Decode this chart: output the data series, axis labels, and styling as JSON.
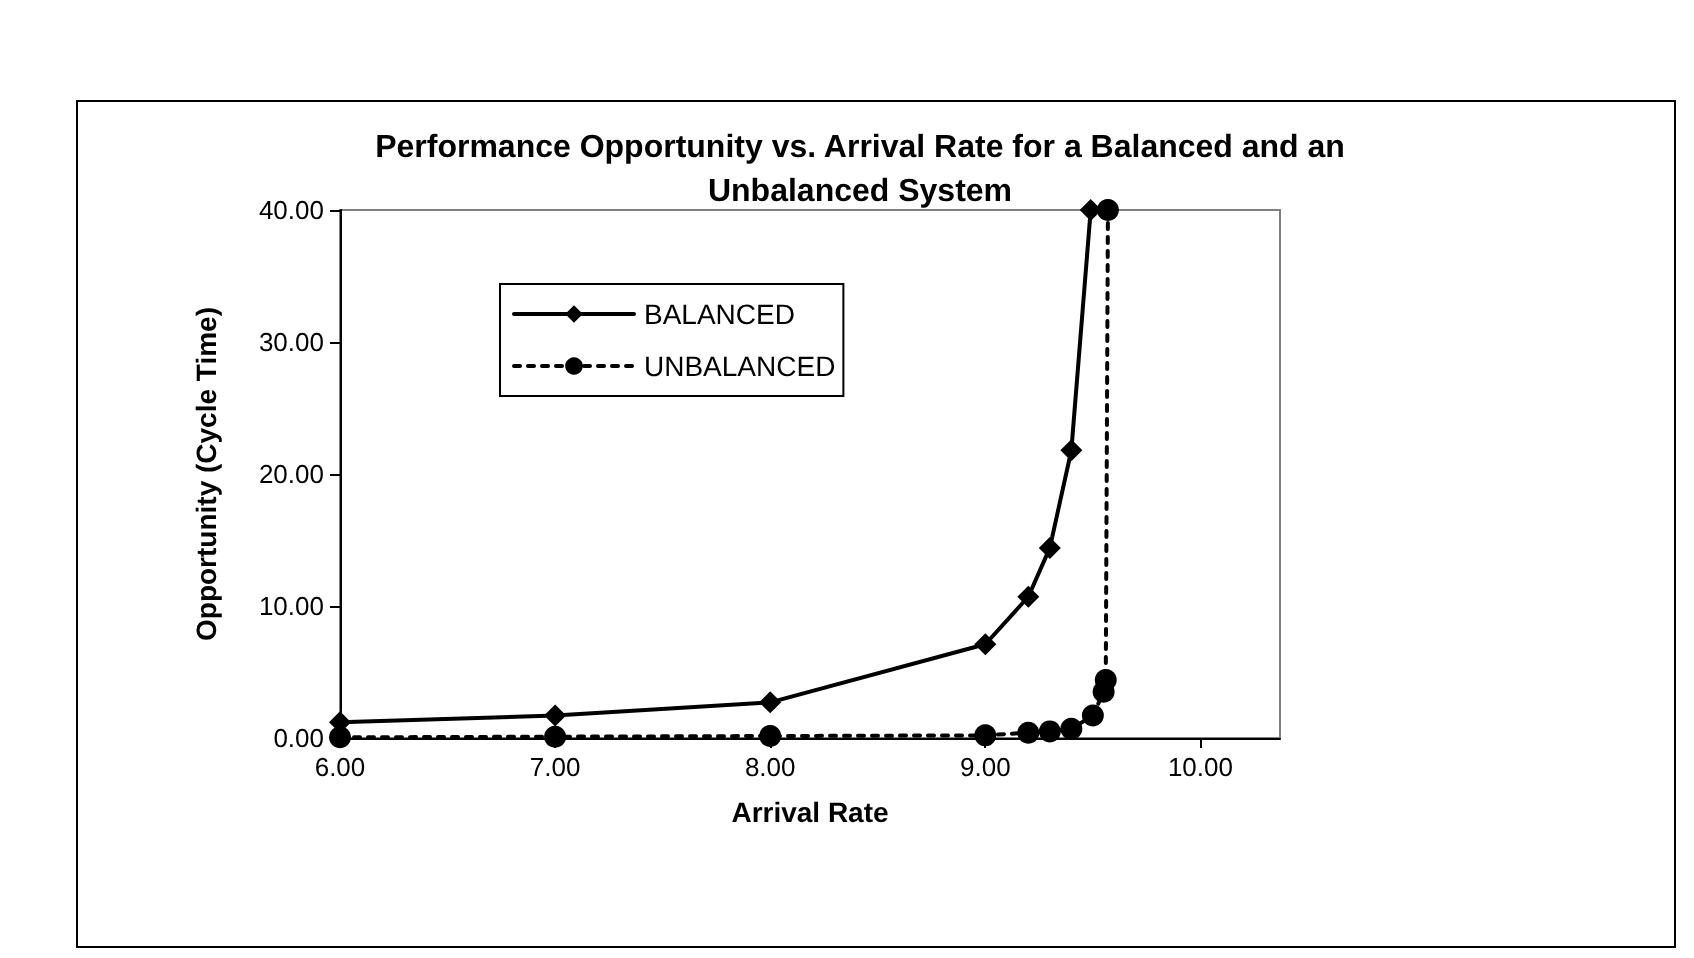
{
  "chart_data": {
    "type": "line",
    "title": "Performance Opportunity vs. Arrival Rate for a Balanced and an\nUnbalanced System",
    "xlabel": "Arrival Rate",
    "ylabel": "Opportunity (Cycle Time)",
    "xlim": [
      6,
      10.37
    ],
    "xticks": [
      {
        "value": 6,
        "label": "6.00"
      },
      {
        "value": 7,
        "label": "7.00"
      },
      {
        "value": 8,
        "label": "8.00"
      },
      {
        "value": 9,
        "label": "9.00"
      },
      {
        "value": 10,
        "label": "10.00"
      }
    ],
    "ylim": [
      0,
      40
    ],
    "yticks": [
      {
        "value": 0,
        "label": "0.00"
      },
      {
        "value": 10,
        "label": "10.00"
      },
      {
        "value": 20,
        "label": "20.00"
      },
      {
        "value": 30,
        "label": "30.00"
      },
      {
        "value": 40,
        "label": "40.00"
      }
    ],
    "grid": false,
    "legend": "top left",
    "series": [
      {
        "name": "BALANCED",
        "color": "#000000",
        "marker": "diamond",
        "line_style": "solid",
        "x": [
          6,
          7,
          8,
          9,
          9.2,
          9.3,
          9.4,
          9.49
        ],
        "values": [
          1.2,
          1.7,
          2.7,
          7.1,
          10.7,
          14.4,
          21.8,
          40
        ]
      },
      {
        "name": "UNBALANCED",
        "color": "#000000",
        "marker": "circle",
        "line_style": "dotted",
        "x": [
          6,
          7,
          8,
          9,
          9.2,
          9.3,
          9.4,
          9.5,
          9.55,
          9.56,
          9.57
        ],
        "values": [
          0.05,
          0.1,
          0.15,
          0.2,
          0.4,
          0.5,
          0.7,
          1.7,
          3.5,
          4.4,
          40
        ]
      }
    ]
  }
}
